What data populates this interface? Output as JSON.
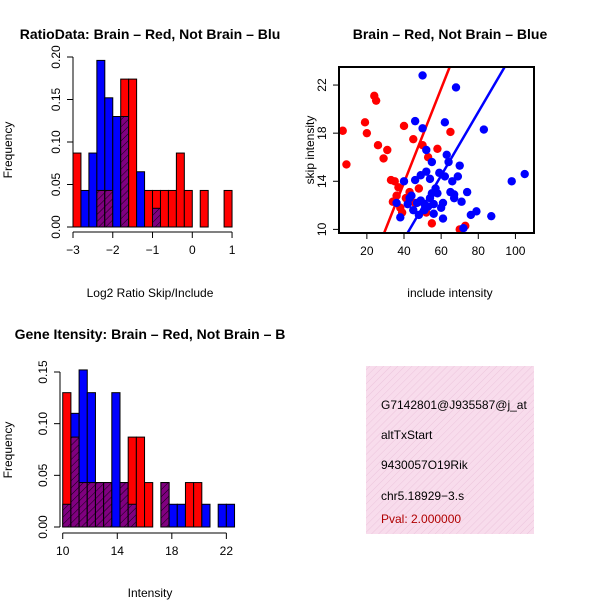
{
  "chart_data": [
    {
      "id": "ratio_hist",
      "type": "bar",
      "title": "RatioData: Brain – Red, Not Brain – Blu",
      "xlabel": "Log2 Ratio Skip/Include",
      "ylabel": "Frequency",
      "xlim": [
        -3,
        1.2
      ],
      "ylim": [
        0,
        0.2
      ],
      "xticks": [
        -3,
        -2,
        -1,
        0,
        1
      ],
      "xtick_labels": [
        "−3",
        "−2",
        "−1",
        "0",
        "1"
      ],
      "yticks": [
        0,
        0.05,
        0.1,
        0.15,
        0.2
      ],
      "ytick_labels": [
        "0.00",
        "0.05",
        "0.10",
        "0.15",
        "0.20"
      ],
      "bin_start": -3.0,
      "bin_width": 0.2,
      "series": [
        {
          "name": "Brain",
          "color": "#ff0000",
          "values": [
            0.087,
            0.0,
            0.0,
            0.043,
            0.043,
            0.0,
            0.174,
            0.174,
            0.0,
            0.043,
            0.043,
            0.043,
            0.043,
            0.087,
            0.043,
            0.0,
            0.043,
            0.0,
            0.0,
            0.043,
            0.0
          ]
        },
        {
          "name": "Not Brain",
          "color": "#0000ff",
          "values": [
            0.0,
            0.043,
            0.087,
            0.196,
            0.152,
            0.13,
            0.13,
            0.0,
            0.065,
            0.0,
            0.022,
            0.0,
            0.0,
            0.0,
            0.0,
            0.0,
            0.0,
            0.0,
            0.0,
            0.0,
            0.0
          ]
        }
      ],
      "overlap_color": "#800080"
    },
    {
      "id": "intensity_scatter",
      "type": "scatter",
      "title": "Brain – Red, Not Brain – Blue",
      "xlabel": "include intensity",
      "ylabel": "skip intensity",
      "xlim": [
        5,
        110
      ],
      "ylim": [
        9.7,
        23.5
      ],
      "xticks": [
        20,
        40,
        60,
        80,
        100
      ],
      "xtick_labels": [
        "20",
        "40",
        "60",
        "80",
        "100"
      ],
      "yticks": [
        10,
        14,
        18,
        22
      ],
      "ytick_labels": [
        "10",
        "14",
        "18",
        "22"
      ],
      "series": [
        {
          "name": "Brain",
          "color": "#ff0000",
          "points": [
            [
              7,
              18.2
            ],
            [
              9,
              15.4
            ],
            [
              19,
              18.9
            ],
            [
              20,
              18.0
            ],
            [
              24,
              21.1
            ],
            [
              25,
              20.7
            ],
            [
              26,
              17.0
            ],
            [
              29,
              15.9
            ],
            [
              31,
              16.6
            ],
            [
              33,
              14.1
            ],
            [
              34,
              12.3
            ],
            [
              35,
              14.0
            ],
            [
              36,
              12.8
            ],
            [
              37,
              13.5
            ],
            [
              38,
              11.8
            ],
            [
              39,
              11.4
            ],
            [
              40,
              18.6
            ],
            [
              41,
              12.6
            ],
            [
              43,
              13.1
            ],
            [
              45,
              17.5
            ],
            [
              46,
              12.2
            ],
            [
              48,
              13.4
            ],
            [
              50,
              17.0
            ],
            [
              52,
              11.4
            ],
            [
              53,
              16.0
            ],
            [
              55,
              10.5
            ],
            [
              58,
              16.7
            ],
            [
              65,
              18.1
            ],
            [
              70,
              10.0
            ],
            [
              73,
              10.3
            ]
          ],
          "fit": [
            [
              29.3,
              9.7
            ],
            [
              64.6,
              23.5
            ]
          ]
        },
        {
          "name": "Not Brain",
          "color": "#0000ff",
          "points": [
            [
              36,
              12.2
            ],
            [
              38,
              11.0
            ],
            [
              40,
              14.0
            ],
            [
              42,
              12.1
            ],
            [
              43,
              12.6
            ],
            [
              44,
              12.8
            ],
            [
              45,
              11.6
            ],
            [
              46,
              19.0
            ],
            [
              46,
              14.1
            ],
            [
              47,
              12.2
            ],
            [
              48,
              11.2
            ],
            [
              49,
              14.5
            ],
            [
              49,
              12.4
            ],
            [
              50,
              22.8
            ],
            [
              50,
              18.4
            ],
            [
              51,
              12.1
            ],
            [
              51,
              11.6
            ],
            [
              52,
              16.6
            ],
            [
              52,
              14.8
            ],
            [
              53,
              11.9
            ],
            [
              54,
              14.2
            ],
            [
              54,
              12.6
            ],
            [
              55,
              15.6
            ],
            [
              55,
              13.0
            ],
            [
              56,
              12.1
            ],
            [
              56,
              11.3
            ],
            [
              57,
              13.4
            ],
            [
              58,
              13.0
            ],
            [
              59,
              14.7
            ],
            [
              60,
              11.8
            ],
            [
              61,
              12.2
            ],
            [
              61,
              10.9
            ],
            [
              62,
              14.4
            ],
            [
              62,
              18.9
            ],
            [
              63,
              16.2
            ],
            [
              64,
              15.6
            ],
            [
              65,
              13.1
            ],
            [
              66,
              14.0
            ],
            [
              67,
              12.6
            ],
            [
              67,
              12.9
            ],
            [
              68,
              21.8
            ],
            [
              69,
              14.4
            ],
            [
              70,
              15.3
            ],
            [
              71,
              12.3
            ],
            [
              72,
              10.1
            ],
            [
              74,
              13.1
            ],
            [
              76,
              11.2
            ],
            [
              79,
              11.5
            ],
            [
              83,
              18.3
            ],
            [
              87,
              11.1
            ],
            [
              98,
              14.0
            ],
            [
              105,
              14.6
            ]
          ],
          "fit": [
            [
              41.9,
              9.7
            ],
            [
              94.2,
              23.5
            ]
          ]
        }
      ]
    },
    {
      "id": "intensity_hist",
      "type": "bar",
      "title": "Gene Itensity: Brain – Red, Not Brain – B",
      "xlabel": "Intensity",
      "ylabel": "Frequency",
      "xlim": [
        9.8,
        23.0
      ],
      "ylim": [
        0,
        0.15
      ],
      "xticks": [
        10,
        14,
        18,
        22
      ],
      "xtick_labels": [
        "10",
        "14",
        "18",
        "22"
      ],
      "yticks": [
        0,
        0.05,
        0.1,
        0.15
      ],
      "ytick_labels": [
        "0.00",
        "0.05",
        "0.10",
        "0.15"
      ],
      "bin_start": 10.0,
      "bin_width": 0.6,
      "series": [
        {
          "name": "Brain",
          "color": "#ff0000",
          "values": [
            0.13,
            0.087,
            0.043,
            0.043,
            0.043,
            0.043,
            0.0,
            0.043,
            0.087,
            0.087,
            0.043,
            0.0,
            0.043,
            0.0,
            0.0,
            0.043,
            0.043,
            0.0,
            0.0,
            0.0,
            0.0
          ]
        },
        {
          "name": "Not Brain",
          "color": "#0000ff",
          "values": [
            0.022,
            0.11,
            0.152,
            0.13,
            0.043,
            0.043,
            0.13,
            0.043,
            0.022,
            0.0,
            0.0,
            0.0,
            0.043,
            0.022,
            0.022,
            0.0,
            0.0,
            0.022,
            0.0,
            0.022,
            0.022
          ]
        }
      ],
      "overlap_color": "#800080"
    }
  ],
  "info_panel": {
    "bg_color": "#f8dcec",
    "lines": [
      "G7142801@J935587@j_at",
      "altTxStart",
      "9430057O19Rik",
      "chr5.18929−3.s"
    ],
    "pval": "Pval: 2.000000",
    "pval_color": "#b00000"
  }
}
